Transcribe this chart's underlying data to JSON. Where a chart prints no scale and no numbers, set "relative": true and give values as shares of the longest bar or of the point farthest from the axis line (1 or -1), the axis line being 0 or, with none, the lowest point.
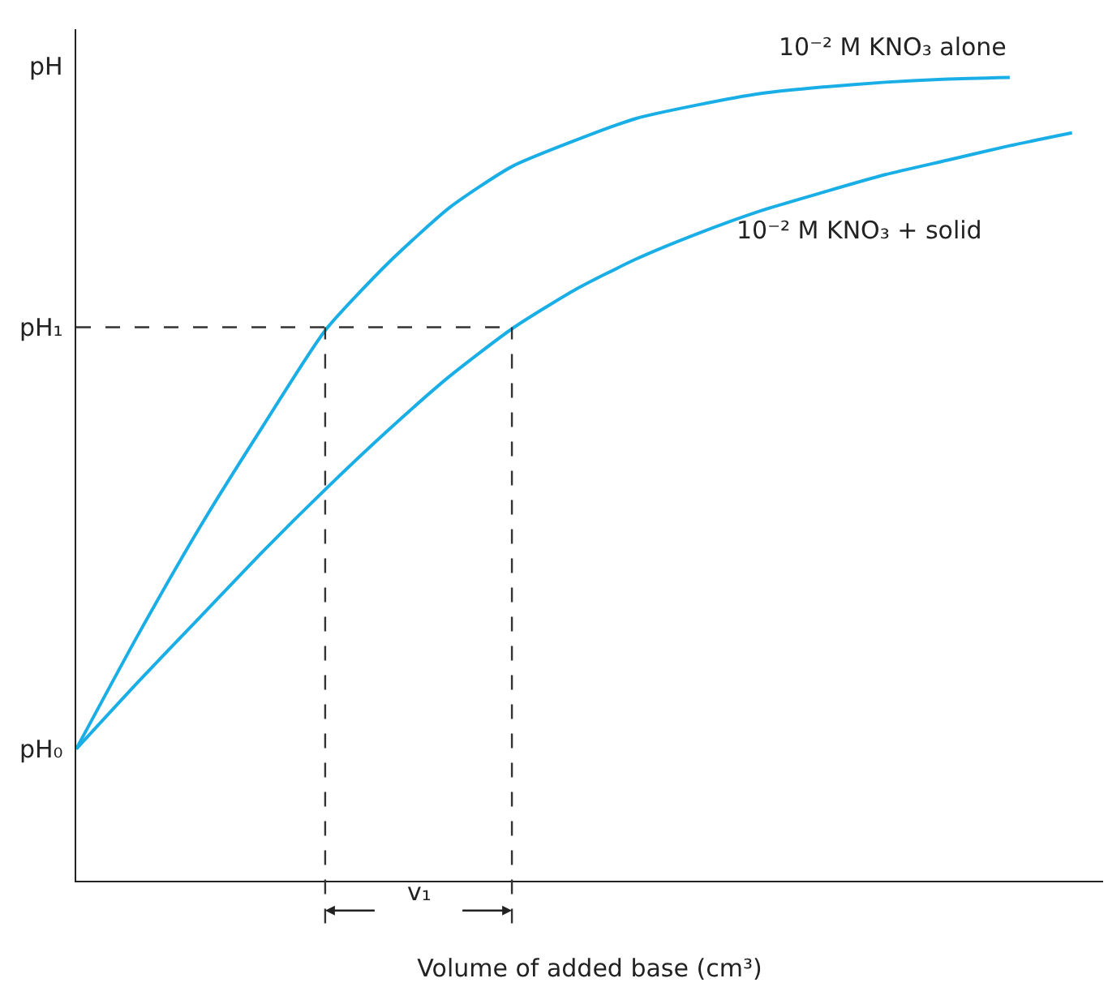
{
  "chart_data": {
    "type": "line",
    "relative": true,
    "xlabel": "Volume of added base (cm³)",
    "categories": [
      null,
      null,
      null,
      null,
      null,
      null,
      null,
      null,
      null,
      null,
      null,
      null,
      null,
      null,
      null,
      null,
      null
    ],
    "series": [
      {
        "name": "10⁻² M KNO₃ alone",
        "color": "#1aaee6",
        "values": [
          0.164,
          0.307,
          0.442,
          0.566,
          0.685,
          0.768,
          0.838,
          0.889,
          0.921,
          0.949,
          0.966,
          0.98,
          0.988,
          0.994,
          0.998,
          1.0,
          null
        ]
      },
      {
        "name": "10⁻² M KNO₃ + solid",
        "color": "#1aaee6",
        "values": [
          0.164,
          0.248,
          0.329,
          0.41,
          0.487,
          0.56,
          0.628,
          0.687,
          0.735,
          0.774,
          0.806,
          0.834,
          0.857,
          0.879,
          0.897,
          0.915,
          0.931
        ]
      }
    ],
    "ref_lines": [
      {
        "axis": "y",
        "value": 0.689,
        "label": "pH₁",
        "line_style": "dashed",
        "color": "#333333"
      }
    ],
    "annotations": [
      "pH",
      "pH₀",
      "v₁"
    ],
    "marker": "none",
    "line_style": "solid",
    "legend": false
  }
}
